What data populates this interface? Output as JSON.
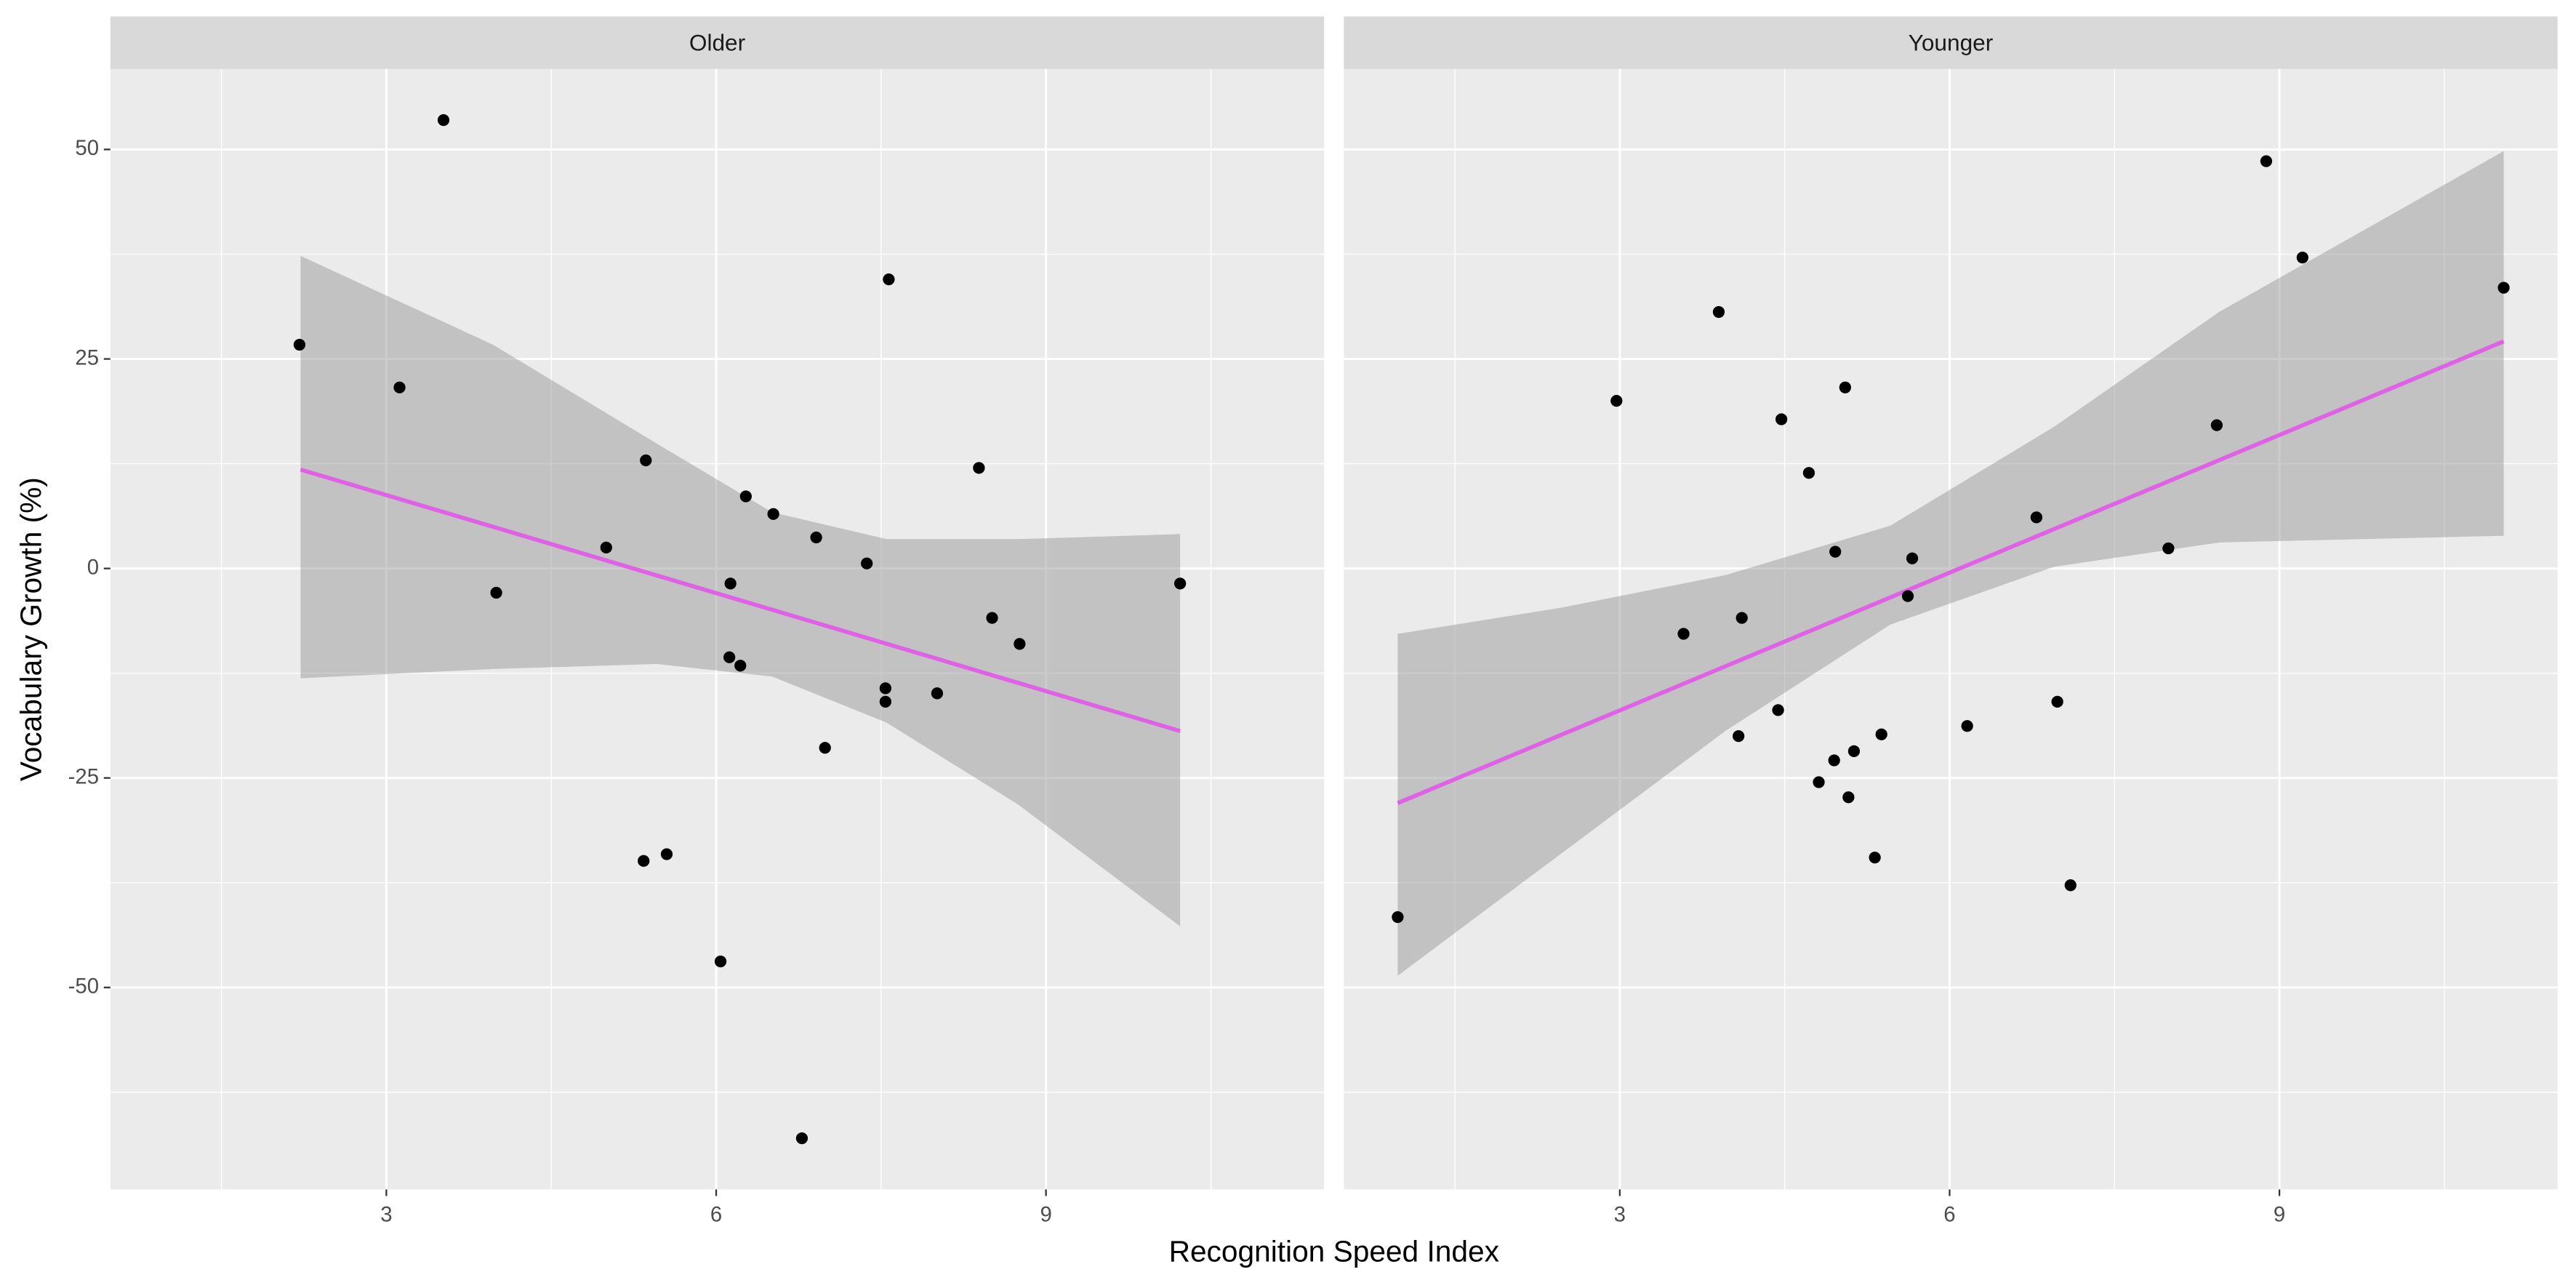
{
  "chart_data": {
    "type": "scatter",
    "xlabel": "Recognition Speed Index",
    "ylabel": "Vocabulary Growth (%)",
    "xlim": [
      0.49,
      11.53
    ],
    "ylim": [
      -74.1,
      59.6
    ],
    "xticks": [
      3,
      6,
      9
    ],
    "yticks": [
      -50,
      -25,
      0,
      25,
      50
    ],
    "xminor": [
      1.5,
      4.5,
      7.5,
      10.5
    ],
    "yminor": [
      -62.5,
      -37.5,
      -12.5,
      12.5,
      37.5
    ],
    "grid": true,
    "point_color": "#000000",
    "fit_color": "#e060e6",
    "band_color": "#999999",
    "facets": [
      {
        "title": "Older",
        "points": {
          "x": [
            2.21,
            3.12,
            3.52,
            4.0,
            5.0,
            5.36,
            5.34,
            5.55,
            6.04,
            6.13,
            6.12,
            6.22,
            6.27,
            6.52,
            6.78,
            6.91,
            6.99,
            7.37,
            7.54,
            7.54,
            7.57,
            8.01,
            8.39,
            8.51,
            8.76,
            10.22
          ],
          "values": [
            26.7,
            21.6,
            53.5,
            -2.9,
            2.5,
            12.9,
            -34.9,
            -34.1,
            -46.9,
            -1.8,
            -10.6,
            -11.6,
            8.6,
            6.5,
            -68.0,
            3.7,
            -21.4,
            0.6,
            -14.3,
            -15.9,
            34.5,
            -14.9,
            12.0,
            -5.9,
            -9.0,
            -1.8
          ]
        },
        "fit": {
          "x": [
            2.22,
            10.22
          ],
          "values": [
            11.8,
            -19.4
          ]
        },
        "band": {
          "x": [
            2.22,
            3.97,
            5.46,
            6.51,
            7.55,
            8.75,
            10.22
          ],
          "upper": [
            37.3,
            26.7,
            14.9,
            6.7,
            3.5,
            3.5,
            4.1
          ],
          "lower": [
            -13.1,
            -12.0,
            -11.4,
            -12.9,
            -18.4,
            -28.2,
            -42.7
          ]
        }
      },
      {
        "title": "Younger",
        "points": {
          "x": [
            0.98,
            2.97,
            3.58,
            3.9,
            4.08,
            4.11,
            4.44,
            4.47,
            4.72,
            4.81,
            4.95,
            4.96,
            5.05,
            5.08,
            5.13,
            5.32,
            5.38,
            5.62,
            5.66,
            6.16,
            6.79,
            6.98,
            7.1,
            7.99,
            8.43,
            8.88,
            9.21,
            11.04
          ],
          "values": [
            -41.6,
            20.0,
            -7.8,
            30.6,
            -20.0,
            -5.9,
            -16.9,
            17.8,
            11.4,
            -25.5,
            -22.9,
            2.0,
            21.6,
            -27.3,
            -21.8,
            -34.5,
            -19.8,
            -3.3,
            1.2,
            -18.8,
            6.1,
            -15.9,
            -37.8,
            2.4,
            17.1,
            48.6,
            37.1,
            33.5
          ]
        },
        "fit": {
          "x": [
            0.98,
            11.04
          ],
          "values": [
            -28.0,
            27.1
          ]
        },
        "band": {
          "x": [
            0.98,
            2.46,
            3.96,
            5.46,
            6.95,
            8.45,
            11.04
          ],
          "upper": [
            -7.8,
            -4.7,
            -0.8,
            5.1,
            16.9,
            30.6,
            49.8
          ],
          "lower": [
            -48.6,
            -34.1,
            -19.4,
            -6.7,
            0.2,
            3.1,
            3.9
          ]
        }
      }
    ]
  }
}
